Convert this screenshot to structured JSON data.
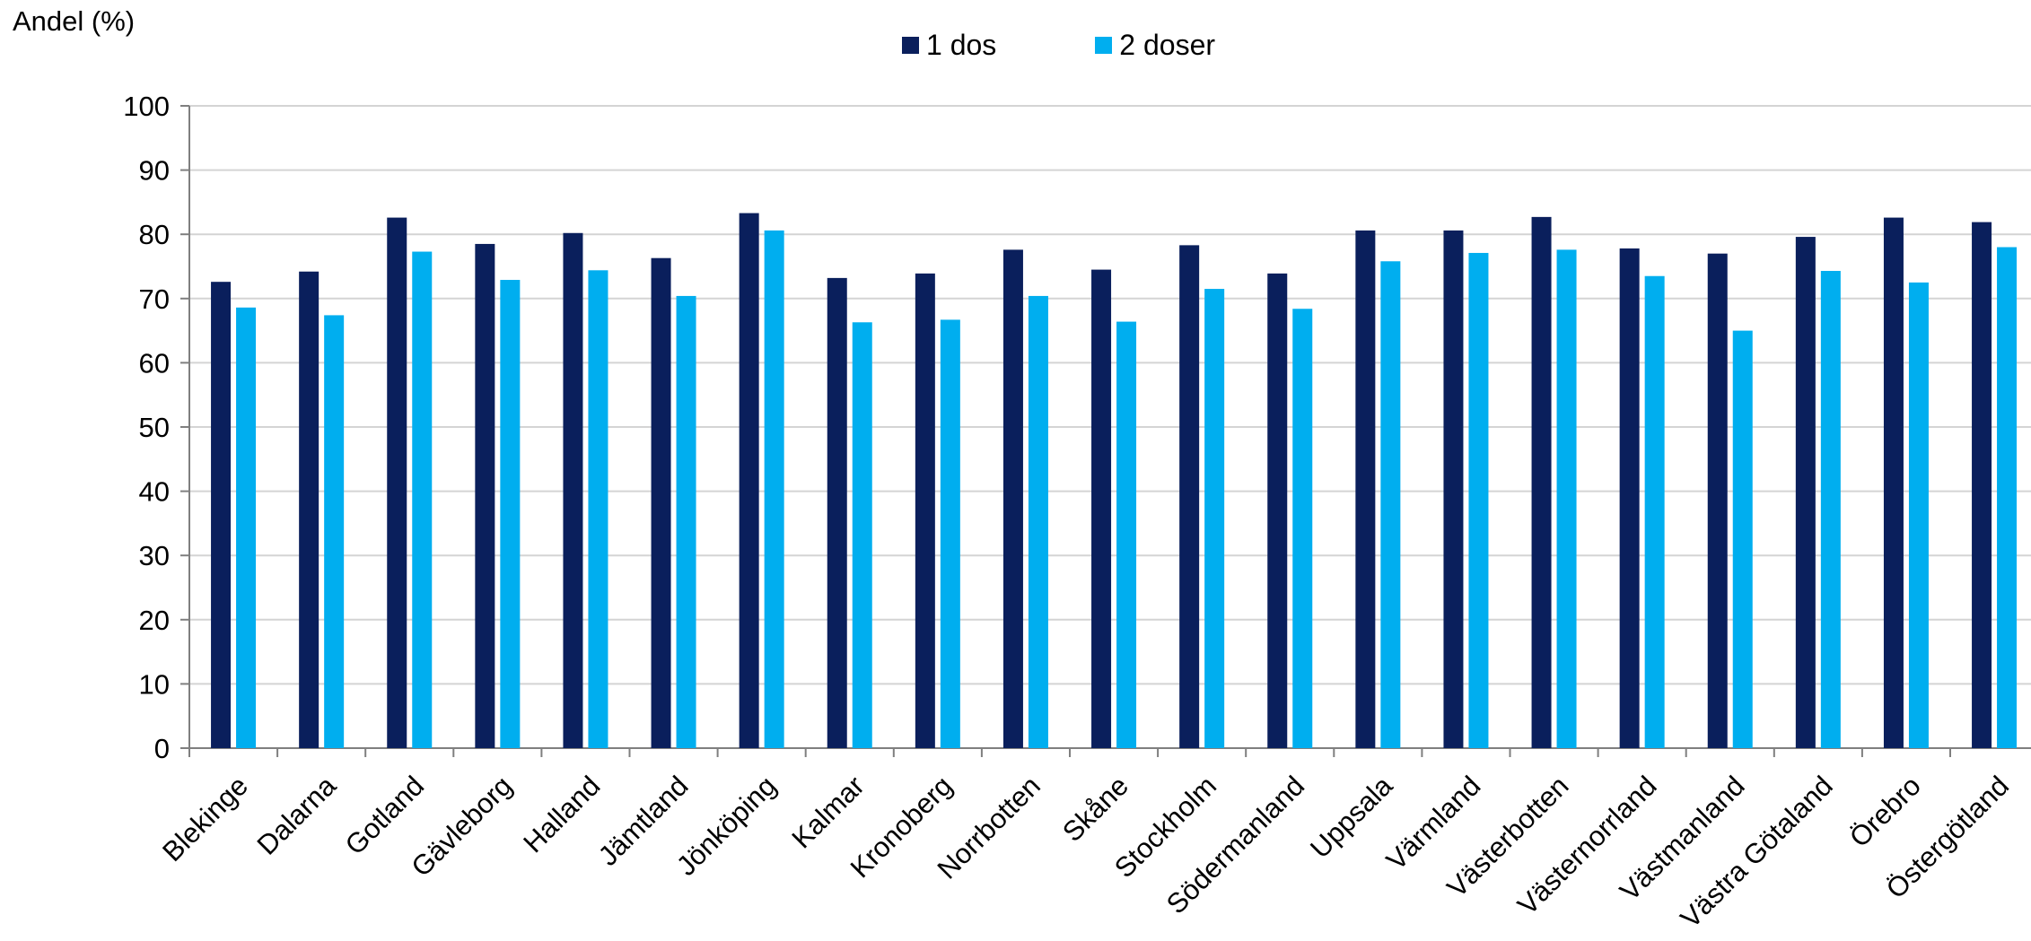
{
  "chart_data": {
    "type": "bar",
    "title": "",
    "xlabel": "",
    "ylabel": "Andel (%)",
    "ylim": [
      0,
      100
    ],
    "yticks": [
      0,
      10,
      20,
      30,
      40,
      50,
      60,
      70,
      80,
      90,
      100
    ],
    "grid": true,
    "legend_position": "top-center",
    "categories": [
      "Blekinge",
      "Dalarna",
      "Gotland",
      "Gävleborg",
      "Halland",
      "Jämtland",
      "Jönköping",
      "Kalmar",
      "Kronoberg",
      "Norrbotten",
      "Skåne",
      "Stockholm",
      "Södermanland",
      "Uppsala",
      "Värmland",
      "Västerbotten",
      "Västernorrland",
      "Västmanland",
      "Västra Götaland",
      "Örebro",
      "Östergötland"
    ],
    "series": [
      {
        "name": "1 dos",
        "color": "#0a1f5c",
        "values": [
          72.6,
          74.2,
          82.6,
          78.5,
          80.2,
          76.3,
          83.3,
          73.2,
          73.9,
          77.6,
          74.5,
          78.3,
          73.9,
          80.6,
          80.6,
          82.7,
          77.8,
          77.0,
          79.6,
          82.6,
          81.9
        ]
      },
      {
        "name": "2 doser",
        "color": "#00aeef",
        "values": [
          68.6,
          67.4,
          77.3,
          72.9,
          74.4,
          70.4,
          80.6,
          66.3,
          66.7,
          70.4,
          66.4,
          71.5,
          68.4,
          75.8,
          77.1,
          77.6,
          73.5,
          65.0,
          74.3,
          72.5,
          78.0
        ]
      }
    ]
  }
}
